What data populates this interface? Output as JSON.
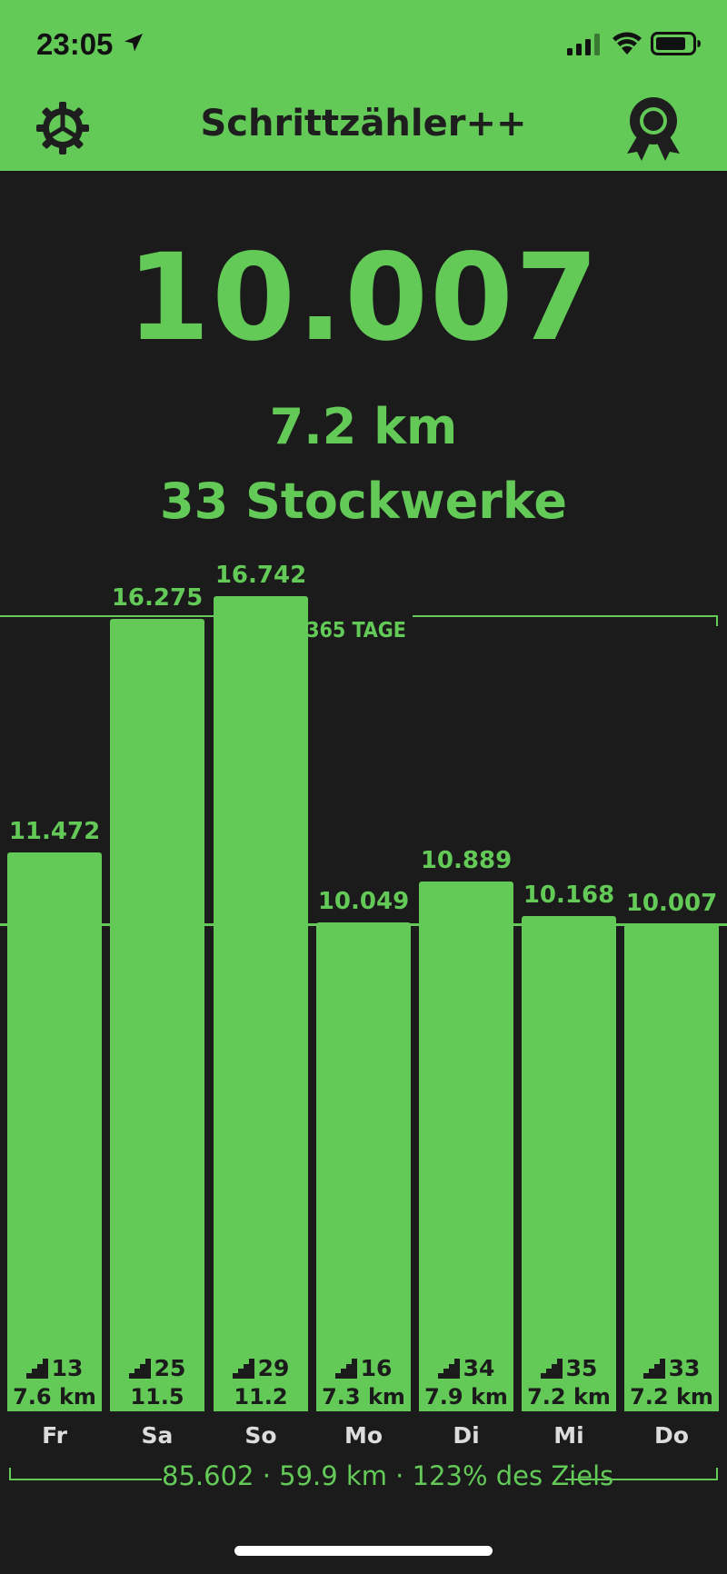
{
  "status_bar": {
    "time": "23:05",
    "icons": [
      "location-arrow-icon",
      "cellular-signal-icon",
      "wifi-icon",
      "battery-icon"
    ]
  },
  "header": {
    "title": "Schrittzähler++",
    "left_icon": "gear-icon",
    "right_icon": "award-ribbon-icon"
  },
  "summary": {
    "steps": "10.007",
    "distance": "7.2 km",
    "floors": "33 Stockwerke"
  },
  "colors": {
    "accent": "#63c957",
    "background": "#1b1b1b",
    "header_text": "#1e1e1e"
  },
  "chart_data": {
    "type": "bar",
    "title": "365 TAGE",
    "categories": [
      "Fr",
      "Sa",
      "So",
      "Mo",
      "Di",
      "Mi",
      "Do"
    ],
    "series": [
      {
        "values": [
          11472,
          16275,
          16742,
          10049,
          10889,
          10168,
          10007
        ]
      }
    ],
    "value_labels": [
      "11.472",
      "16.275",
      "16.742",
      "10.049",
      "10.889",
      "10.168",
      "10.007"
    ],
    "floors": [
      "13",
      "25",
      "29",
      "16",
      "34",
      "35",
      "33"
    ],
    "distances": [
      "7.6 km",
      "11.5 km",
      "11.2 km",
      "7.3 km",
      "7.9 km",
      "7.2 km",
      "7.2 km"
    ],
    "goal": 10000,
    "ylim": [
      0,
      17500
    ],
    "grid": false
  },
  "footer": {
    "summary": "85.602 · 59.9 km · 123% des Ziels"
  }
}
